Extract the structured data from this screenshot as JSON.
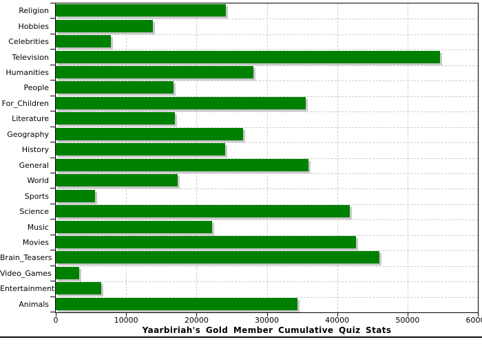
{
  "chart_data": {
    "type": "bar",
    "orientation": "horizontal",
    "title": "Yaarbiriah's Gold Member Cumulative Quiz Stats",
    "categories": [
      "Religion",
      "Hobbies",
      "Celebrities",
      "Television",
      "Humanities",
      "People",
      "For_Children",
      "Literature",
      "Geography",
      "History",
      "General",
      "World",
      "Sports",
      "Science",
      "Music",
      "Movies",
      "Brain_Teasers",
      "Video_Games",
      "Entertainment",
      "Animals"
    ],
    "values": [
      24200,
      13800,
      7800,
      54600,
      28100,
      16700,
      35500,
      16900,
      26600,
      24100,
      35900,
      17300,
      5600,
      41800,
      22200,
      42700,
      46000,
      3300,
      6500,
      34400
    ],
    "xlabel": "",
    "ylabel": "",
    "xlim": [
      0,
      60000
    ],
    "x_ticks": [
      0,
      10000,
      20000,
      30000,
      40000,
      50000,
      60000
    ],
    "x_tick_labels": [
      "0",
      "10000",
      "20000",
      "30000",
      "40000",
      "50000",
      "60000"
    ],
    "grid": true,
    "legend_position": "none",
    "colors": {
      "bar": "#008000",
      "bar_shadow": "#c9c9c9",
      "grid": "#cccccc",
      "axis": "#000000",
      "text": "#000000",
      "background": "#ffffff"
    }
  }
}
